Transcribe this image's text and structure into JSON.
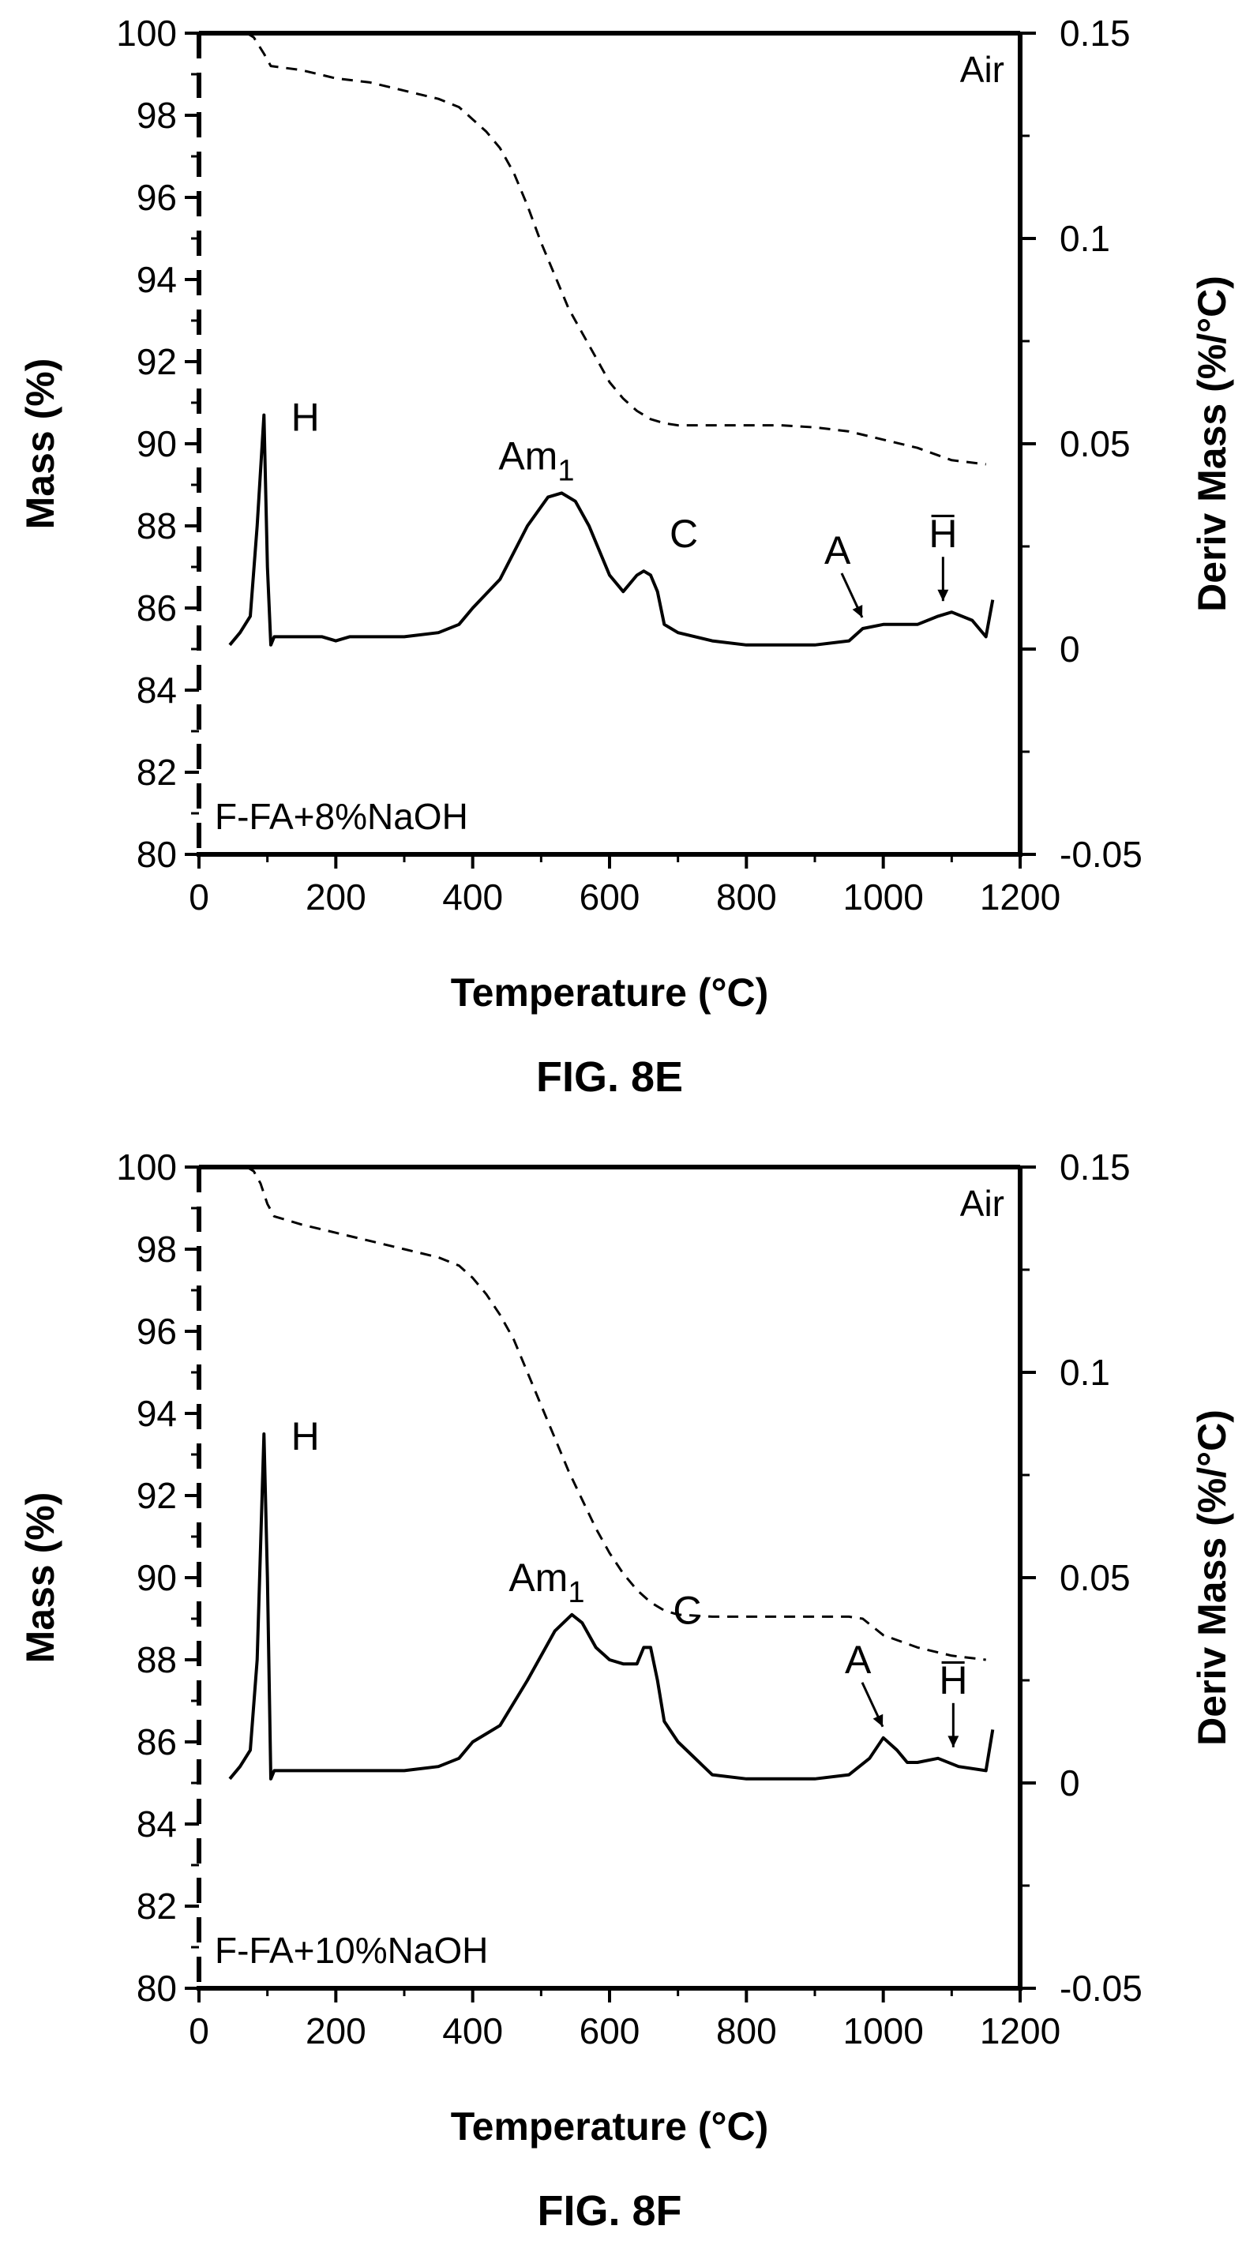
{
  "figures": [
    {
      "label": "FIG. 8E",
      "sample_label": "F-FA+8%NaOH",
      "atmosphere": "Air"
    },
    {
      "label": "FIG. 8F",
      "sample_label": "F-FA+10%NaOH",
      "atmosphere": "Air"
    }
  ],
  "chart_data": [
    {
      "type": "line",
      "title": "",
      "xlabel": "Temperature (°C)",
      "ylabel": "Mass (%)",
      "y2label": "Deriv Mass (%/°C)",
      "xlim": [
        0,
        1200
      ],
      "ylim": [
        80,
        100
      ],
      "y2lim": [
        -0.05,
        0.15
      ],
      "x_ticks": [
        0,
        200,
        400,
        600,
        800,
        1000,
        1200
      ],
      "y_ticks": [
        80,
        82,
        84,
        86,
        88,
        90,
        92,
        94,
        96,
        98,
        100
      ],
      "y2_ticks": [
        "0.15",
        "0.1",
        "0.05",
        "0",
        "-0.05"
      ],
      "grid": false,
      "series": [
        {
          "style": "dashed",
          "axis": "left",
          "x": [
            70,
            80,
            95,
            105,
            150,
            200,
            250,
            300,
            350,
            380,
            400,
            420,
            440,
            460,
            480,
            500,
            520,
            540,
            560,
            580,
            600,
            620,
            640,
            660,
            680,
            700,
            720,
            760,
            800,
            850,
            900,
            950,
            1000,
            1050,
            1100,
            1150
          ],
          "y": [
            100,
            99.9,
            99.5,
            99.2,
            99.1,
            98.9,
            98.8,
            98.6,
            98.4,
            98.2,
            97.9,
            97.6,
            97.2,
            96.6,
            95.8,
            94.9,
            94.1,
            93.3,
            92.7,
            92.1,
            91.5,
            91.1,
            90.8,
            90.6,
            90.5,
            90.45,
            90.45,
            90.45,
            90.45,
            90.45,
            90.4,
            90.3,
            90.1,
            89.9,
            89.6,
            89.5
          ]
        },
        {
          "style": "solid",
          "axis": "right",
          "x": [
            45,
            60,
            75,
            85,
            95,
            100,
            105,
            110,
            130,
            180,
            200,
            220,
            240,
            300,
            350,
            380,
            400,
            440,
            480,
            510,
            530,
            550,
            570,
            600,
            620,
            640,
            650,
            660,
            670,
            680,
            700,
            750,
            800,
            850,
            900,
            950,
            970,
            1000,
            1050,
            1080,
            1100,
            1130,
            1150,
            1160
          ],
          "y": [
            0.001,
            0.004,
            0.008,
            0.03,
            0.057,
            0.02,
            0.001,
            0.003,
            0.003,
            0.003,
            0.002,
            0.003,
            0.003,
            0.003,
            0.004,
            0.006,
            0.01,
            0.017,
            0.03,
            0.037,
            0.038,
            0.036,
            0.03,
            0.018,
            0.014,
            0.018,
            0.019,
            0.018,
            0.014,
            0.006,
            0.004,
            0.002,
            0.001,
            0.001,
            0.001,
            0.002,
            0.005,
            0.006,
            0.006,
            0.008,
            0.009,
            0.007,
            0.003,
            0.012
          ]
        }
      ],
      "annotations": [
        {
          "text": "H",
          "x": 100,
          "y2": 0.057
        },
        {
          "text": "Am",
          "sub": "1",
          "x": 530,
          "y2": 0.038
        },
        {
          "text": "C",
          "x": 660,
          "y2": 0.019
        },
        {
          "text": "A",
          "x": 960,
          "y2": 0.005
        },
        {
          "text": "H̅",
          "x": 1085,
          "y2": 0.009
        }
      ]
    },
    {
      "type": "line",
      "title": "",
      "xlabel": "Temperature (°C)",
      "ylabel": "Mass (%)",
      "y2label": "Deriv Mass (%/°C)",
      "xlim": [
        0,
        1200
      ],
      "ylim": [
        80,
        100
      ],
      "y2lim": [
        -0.05,
        0.15
      ],
      "x_ticks": [
        0,
        200,
        400,
        600,
        800,
        1000,
        1200
      ],
      "y_ticks": [
        80,
        82,
        84,
        86,
        88,
        90,
        92,
        94,
        96,
        98,
        100
      ],
      "y2_ticks": [
        "0.15",
        "0.1",
        "0.05",
        "0",
        "-0.05"
      ],
      "grid": false,
      "series": [
        {
          "style": "dashed",
          "axis": "left",
          "x": [
            70,
            80,
            90,
            100,
            110,
            150,
            200,
            250,
            300,
            350,
            380,
            400,
            420,
            440,
            460,
            480,
            500,
            520,
            540,
            560,
            580,
            600,
            620,
            640,
            660,
            680,
            700,
            750,
            800,
            850,
            900,
            950,
            970,
            1000,
            1050,
            1100,
            1150
          ],
          "y": [
            100,
            99.9,
            99.6,
            99.1,
            98.8,
            98.6,
            98.4,
            98.2,
            98.0,
            97.8,
            97.6,
            97.3,
            96.9,
            96.4,
            95.8,
            95.0,
            94.2,
            93.4,
            92.6,
            91.9,
            91.2,
            90.6,
            90.1,
            89.7,
            89.4,
            89.2,
            89.1,
            89.05,
            89.05,
            89.05,
            89.05,
            89.05,
            89.0,
            88.6,
            88.3,
            88.1,
            88.0
          ]
        },
        {
          "style": "solid",
          "axis": "right",
          "x": [
            45,
            60,
            75,
            85,
            95,
            100,
            105,
            110,
            130,
            200,
            250,
            300,
            350,
            380,
            400,
            420,
            440,
            480,
            520,
            545,
            560,
            580,
            600,
            620,
            640,
            650,
            660,
            670,
            680,
            700,
            750,
            800,
            850,
            900,
            950,
            980,
            1000,
            1020,
            1035,
            1050,
            1080,
            1110,
            1150,
            1160
          ],
          "y": [
            0.001,
            0.004,
            0.008,
            0.03,
            0.085,
            0.05,
            0.001,
            0.003,
            0.003,
            0.003,
            0.003,
            0.003,
            0.004,
            0.006,
            0.01,
            0.012,
            0.014,
            0.025,
            0.037,
            0.041,
            0.039,
            0.033,
            0.03,
            0.029,
            0.029,
            0.033,
            0.033,
            0.025,
            0.015,
            0.01,
            0.002,
            0.001,
            0.001,
            0.001,
            0.002,
            0.006,
            0.011,
            0.008,
            0.005,
            0.005,
            0.006,
            0.004,
            0.003,
            0.013
          ]
        }
      ],
      "annotations": [
        {
          "text": "H",
          "x": 100,
          "y2": 0.085
        },
        {
          "text": "Am",
          "sub": "1",
          "x": 545,
          "y2": 0.041
        },
        {
          "text": "C",
          "x": 665,
          "y2": 0.033
        },
        {
          "text": "A",
          "x": 990,
          "y2": 0.011
        },
        {
          "text": "H̅",
          "x": 1100,
          "y2": 0.006
        }
      ]
    }
  ]
}
